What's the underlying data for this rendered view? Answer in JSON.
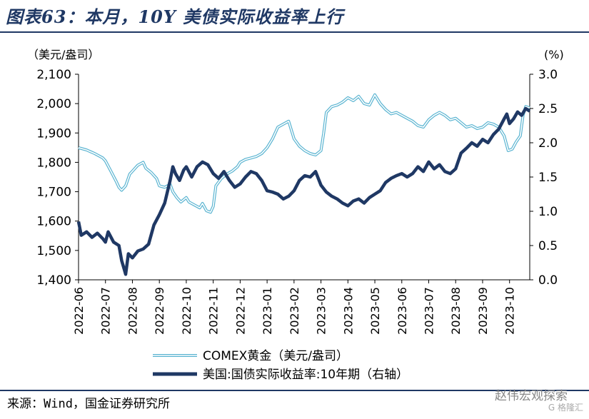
{
  "header": {
    "title": "图表63：本月，10Y 美债实际收益率上行"
  },
  "footer": {
    "source": "来源：Wind，国金证券研究所",
    "watermark": "赵伟宏观探索",
    "watermark_sub": "G 格隆汇"
  },
  "chart_data": {
    "type": "line",
    "left_axis_unit": "（美元/盎司）",
    "right_axis_unit": "(%)",
    "y_left_ticks": [
      "2,100",
      "2,000",
      "1,900",
      "1,800",
      "1,700",
      "1,600",
      "1,500",
      "1,400"
    ],
    "y_right_ticks": [
      "3.0",
      "2.5",
      "2.0",
      "1.5",
      "1.0",
      "0.5",
      "0.0"
    ],
    "ylim_left": [
      1400,
      2100
    ],
    "ylim_right": [
      0.0,
      3.0
    ],
    "x_ticks": [
      "2022-06",
      "2022-07",
      "2022-08",
      "2022-09",
      "2022-10",
      "2022-11",
      "2022-12",
      "2023-01",
      "2023-02",
      "2023-03",
      "2023-04",
      "2023-05",
      "2023-06",
      "2023-07",
      "2023-08",
      "2023-09",
      "2023-10"
    ],
    "legend": [
      "COMEX黄金（美元/盎司）",
      "美国:国债实际收益率:10年期（右轴）"
    ],
    "grid": false,
    "series": [
      {
        "name": "COMEX黄金（美元/盎司）",
        "axis": "left",
        "color": "#5ab4d1",
        "style": "double",
        "points": [
          [
            0.0,
            1850
          ],
          [
            0.3,
            1842
          ],
          [
            0.6,
            1830
          ],
          [
            0.9,
            1815
          ],
          [
            1.0,
            1805
          ],
          [
            1.2,
            1770
          ],
          [
            1.4,
            1735
          ],
          [
            1.5,
            1715
          ],
          [
            1.6,
            1705
          ],
          [
            1.75,
            1720
          ],
          [
            1.9,
            1760
          ],
          [
            2.0,
            1770
          ],
          [
            2.2,
            1790
          ],
          [
            2.4,
            1800
          ],
          [
            2.5,
            1780
          ],
          [
            2.7,
            1765
          ],
          [
            2.9,
            1745
          ],
          [
            3.0,
            1720
          ],
          [
            3.2,
            1715
          ],
          [
            3.4,
            1725
          ],
          [
            3.5,
            1700
          ],
          [
            3.65,
            1680
          ],
          [
            3.8,
            1665
          ],
          [
            4.0,
            1680
          ],
          [
            4.1,
            1665
          ],
          [
            4.3,
            1655
          ],
          [
            4.5,
            1645
          ],
          [
            4.6,
            1660
          ],
          [
            4.75,
            1635
          ],
          [
            4.9,
            1630
          ],
          [
            5.0,
            1650
          ],
          [
            5.1,
            1720
          ],
          [
            5.3,
            1745
          ],
          [
            5.5,
            1760
          ],
          [
            5.7,
            1770
          ],
          [
            5.9,
            1785
          ],
          [
            6.0,
            1800
          ],
          [
            6.2,
            1810
          ],
          [
            6.4,
            1815
          ],
          [
            6.6,
            1820
          ],
          [
            6.8,
            1830
          ],
          [
            7.0,
            1850
          ],
          [
            7.2,
            1880
          ],
          [
            7.4,
            1920
          ],
          [
            7.6,
            1930
          ],
          [
            7.8,
            1940
          ],
          [
            8.0,
            1880
          ],
          [
            8.2,
            1855
          ],
          [
            8.4,
            1840
          ],
          [
            8.6,
            1830
          ],
          [
            8.8,
            1825
          ],
          [
            9.0,
            1840
          ],
          [
            9.1,
            1900
          ],
          [
            9.2,
            1970
          ],
          [
            9.4,
            1990
          ],
          [
            9.6,
            1995
          ],
          [
            9.8,
            2005
          ],
          [
            10.0,
            2020
          ],
          [
            10.2,
            2010
          ],
          [
            10.4,
            2025
          ],
          [
            10.6,
            2000
          ],
          [
            10.8,
            1995
          ],
          [
            11.0,
            2030
          ],
          [
            11.2,
            2000
          ],
          [
            11.4,
            1980
          ],
          [
            11.6,
            1965
          ],
          [
            11.8,
            1970
          ],
          [
            12.0,
            1960
          ],
          [
            12.2,
            1950
          ],
          [
            12.4,
            1940
          ],
          [
            12.6,
            1925
          ],
          [
            12.8,
            1920
          ],
          [
            13.0,
            1945
          ],
          [
            13.2,
            1960
          ],
          [
            13.4,
            1970
          ],
          [
            13.6,
            1960
          ],
          [
            13.8,
            1945
          ],
          [
            14.0,
            1950
          ],
          [
            14.2,
            1935
          ],
          [
            14.4,
            1920
          ],
          [
            14.6,
            1925
          ],
          [
            14.8,
            1915
          ],
          [
            15.0,
            1920
          ],
          [
            15.2,
            1935
          ],
          [
            15.4,
            1930
          ],
          [
            15.6,
            1920
          ],
          [
            15.8,
            1890
          ],
          [
            15.95,
            1840
          ],
          [
            16.1,
            1845
          ],
          [
            16.25,
            1870
          ],
          [
            16.4,
            1890
          ],
          [
            16.5,
            1960
          ],
          [
            16.6,
            1990
          ],
          [
            16.75,
            1985
          ]
        ]
      },
      {
        "name": "美国:国债实际收益率:10年期（右轴）",
        "axis": "right",
        "color": "#1f3864",
        "style": "thick",
        "points": [
          [
            0.0,
            0.85
          ],
          [
            0.1,
            0.65
          ],
          [
            0.3,
            0.7
          ],
          [
            0.5,
            0.62
          ],
          [
            0.7,
            0.68
          ],
          [
            0.9,
            0.6
          ],
          [
            1.0,
            0.55
          ],
          [
            1.1,
            0.7
          ],
          [
            1.3,
            0.55
          ],
          [
            1.5,
            0.5
          ],
          [
            1.6,
            0.28
          ],
          [
            1.7,
            0.15
          ],
          [
            1.75,
            0.08
          ],
          [
            1.85,
            0.38
          ],
          [
            2.0,
            0.32
          ],
          [
            2.2,
            0.42
          ],
          [
            2.4,
            0.45
          ],
          [
            2.6,
            0.52
          ],
          [
            2.8,
            0.8
          ],
          [
            3.0,
            0.95
          ],
          [
            3.2,
            1.12
          ],
          [
            3.4,
            1.45
          ],
          [
            3.5,
            1.65
          ],
          [
            3.6,
            1.55
          ],
          [
            3.75,
            1.45
          ],
          [
            3.9,
            1.6
          ],
          [
            4.0,
            1.65
          ],
          [
            4.2,
            1.5
          ],
          [
            4.4,
            1.65
          ],
          [
            4.6,
            1.72
          ],
          [
            4.8,
            1.68
          ],
          [
            5.0,
            1.55
          ],
          [
            5.2,
            1.48
          ],
          [
            5.4,
            1.58
          ],
          [
            5.6,
            1.45
          ],
          [
            5.8,
            1.35
          ],
          [
            6.0,
            1.4
          ],
          [
            6.2,
            1.5
          ],
          [
            6.4,
            1.58
          ],
          [
            6.6,
            1.55
          ],
          [
            6.8,
            1.45
          ],
          [
            7.0,
            1.3
          ],
          [
            7.2,
            1.28
          ],
          [
            7.4,
            1.25
          ],
          [
            7.6,
            1.18
          ],
          [
            7.8,
            1.22
          ],
          [
            8.0,
            1.3
          ],
          [
            8.2,
            1.45
          ],
          [
            8.4,
            1.52
          ],
          [
            8.6,
            1.5
          ],
          [
            8.8,
            1.58
          ],
          [
            9.0,
            1.38
          ],
          [
            9.2,
            1.28
          ],
          [
            9.4,
            1.22
          ],
          [
            9.6,
            1.18
          ],
          [
            9.8,
            1.12
          ],
          [
            10.0,
            1.08
          ],
          [
            10.2,
            1.15
          ],
          [
            10.4,
            1.18
          ],
          [
            10.6,
            1.12
          ],
          [
            10.8,
            1.2
          ],
          [
            11.0,
            1.25
          ],
          [
            11.2,
            1.3
          ],
          [
            11.4,
            1.42
          ],
          [
            11.6,
            1.48
          ],
          [
            11.8,
            1.52
          ],
          [
            12.0,
            1.55
          ],
          [
            12.2,
            1.5
          ],
          [
            12.4,
            1.55
          ],
          [
            12.6,
            1.65
          ],
          [
            12.8,
            1.58
          ],
          [
            13.0,
            1.72
          ],
          [
            13.2,
            1.62
          ],
          [
            13.4,
            1.68
          ],
          [
            13.6,
            1.58
          ],
          [
            13.8,
            1.55
          ],
          [
            14.0,
            1.62
          ],
          [
            14.2,
            1.85
          ],
          [
            14.4,
            1.92
          ],
          [
            14.6,
            2.0
          ],
          [
            14.8,
            1.95
          ],
          [
            15.0,
            2.05
          ],
          [
            15.2,
            2.0
          ],
          [
            15.4,
            2.12
          ],
          [
            15.6,
            2.2
          ],
          [
            15.8,
            2.35
          ],
          [
            15.9,
            2.42
          ],
          [
            16.0,
            2.28
          ],
          [
            16.15,
            2.35
          ],
          [
            16.3,
            2.45
          ],
          [
            16.45,
            2.4
          ],
          [
            16.6,
            2.5
          ],
          [
            16.75,
            2.46
          ]
        ]
      }
    ]
  }
}
